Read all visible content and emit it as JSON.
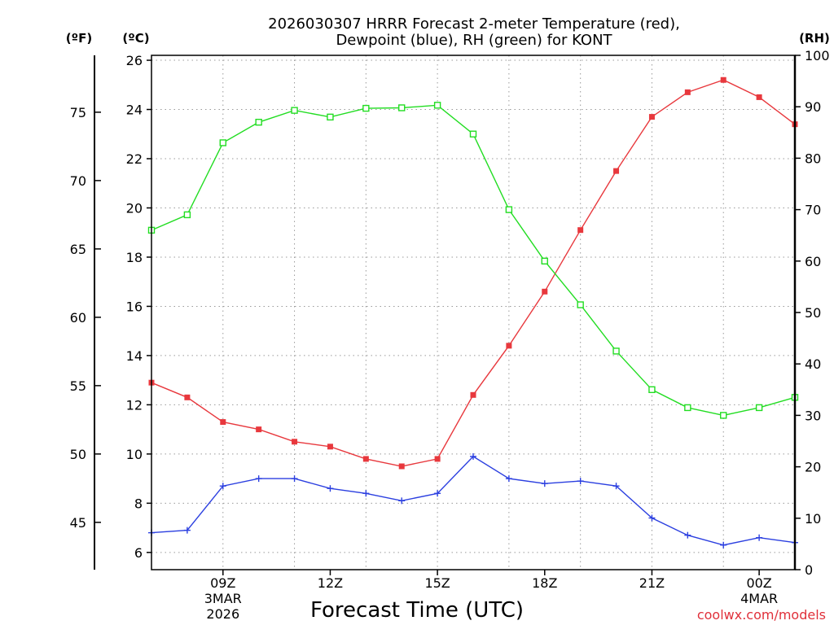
{
  "chart_data": {
    "type": "line",
    "title_line1": "2026030307 HRRR Forecast 2-meter Temperature (red),",
    "title_line2": "Dewpoint (blue), RH (green) for KONT",
    "xlabel": "Forecast Time (UTC)",
    "watermark": "coolwx.com/models",
    "units": {
      "fahrenheit": "(ºF)",
      "celsius": "(ºC)",
      "rh": "(RH)"
    },
    "x_hours": [
      7,
      8,
      9,
      10,
      11,
      12,
      13,
      14,
      15,
      16,
      17,
      18,
      19,
      20,
      21,
      22,
      23,
      24,
      25
    ],
    "x_range": [
      7,
      25
    ],
    "x_ticks": [
      {
        "hour": 9,
        "label": "09Z",
        "sub1": "3MAR",
        "sub2": "2026"
      },
      {
        "hour": 12,
        "label": "12Z",
        "sub1": "",
        "sub2": ""
      },
      {
        "hour": 15,
        "label": "15Z",
        "sub1": "",
        "sub2": ""
      },
      {
        "hour": 18,
        "label": "18Z",
        "sub1": "",
        "sub2": ""
      },
      {
        "hour": 21,
        "label": "21Z",
        "sub1": "",
        "sub2": ""
      },
      {
        "hour": 24,
        "label": "00Z",
        "sub1": "4MAR",
        "sub2": ""
      }
    ],
    "celsius_ticks": [
      "6",
      "8",
      "10",
      "12",
      "14",
      "16",
      "18",
      "20",
      "22",
      "24",
      "26"
    ],
    "celsius_range": [
      5.3,
      26.2
    ],
    "fahrenheit_ticks": [
      "45",
      "50",
      "55",
      "60",
      "65",
      "70",
      "75"
    ],
    "rh_ticks": [
      "0",
      "10",
      "20",
      "30",
      "40",
      "50",
      "60",
      "70",
      "80",
      "90",
      "100"
    ],
    "rh_range": [
      0,
      100
    ],
    "series": [
      {
        "name": "Temperature",
        "color": "#e8383d",
        "marker": "filled-square",
        "axis": "celsius",
        "values": [
          12.9,
          12.3,
          11.3,
          11.0,
          10.5,
          10.3,
          9.8,
          9.5,
          9.8,
          12.4,
          14.4,
          16.6,
          19.1,
          21.5,
          23.7,
          24.7,
          25.2,
          24.5,
          23.4
        ]
      },
      {
        "name": "Dewpoint",
        "color": "#2b3fe0",
        "marker": "plus",
        "axis": "celsius",
        "values": [
          6.8,
          6.9,
          8.7,
          9.0,
          9.0,
          8.6,
          8.4,
          8.1,
          8.4,
          9.9,
          9.0,
          8.8,
          8.9,
          8.7,
          7.4,
          6.7,
          6.3,
          6.6,
          6.4
        ]
      },
      {
        "name": "RH",
        "color": "#22dd22",
        "marker": "open-square",
        "axis": "rh",
        "values": [
          66,
          69,
          83,
          87,
          89.3,
          88,
          89.7,
          89.8,
          90.3,
          84.7,
          70,
          60,
          51.5,
          42.5,
          35,
          31.5,
          30,
          31.5,
          33.5
        ]
      }
    ]
  }
}
